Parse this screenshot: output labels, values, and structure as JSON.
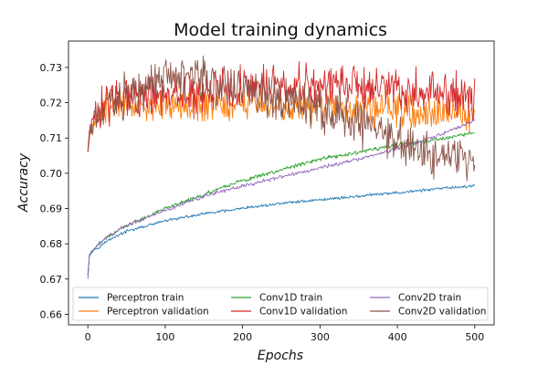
{
  "chart_data": {
    "type": "line",
    "title": "Model training dynamics",
    "xlabel": "Epochs",
    "ylabel": "Accuracy",
    "xlim": [
      -25,
      525
    ],
    "ylim": [
      0.657,
      0.7375
    ],
    "xticks": [
      0,
      100,
      200,
      300,
      400,
      500
    ],
    "yticks": [
      0.66,
      0.67,
      0.68,
      0.69,
      0.7,
      0.71,
      0.72,
      0.73
    ],
    "ytick_labels": [
      "0.66",
      "0.67",
      "0.68",
      "0.69",
      "0.70",
      "0.71",
      "0.72",
      "0.73"
    ],
    "grid": false,
    "legend_position": "bottom",
    "series": [
      {
        "name": "Perceptron train",
        "color": "#1f77b4",
        "noise": 0.0003,
        "x": [
          0,
          2,
          5,
          10,
          20,
          30,
          50,
          75,
          100,
          150,
          200,
          250,
          300,
          350,
          400,
          450,
          500
        ],
        "y": [
          0.671,
          0.677,
          0.678,
          0.6785,
          0.68,
          0.6815,
          0.6835,
          0.685,
          0.6865,
          0.6885,
          0.69,
          0.6915,
          0.6925,
          0.6935,
          0.6945,
          0.6955,
          0.6965
        ]
      },
      {
        "name": "Perceptron validation",
        "color": "#ff7f0e",
        "noise": 0.0035,
        "x": [
          0,
          3,
          10,
          20,
          40,
          60,
          100,
          150,
          200,
          250,
          300,
          350,
          400,
          450,
          500
        ],
        "y": [
          0.706,
          0.712,
          0.716,
          0.719,
          0.719,
          0.719,
          0.7195,
          0.7195,
          0.7195,
          0.7195,
          0.719,
          0.718,
          0.718,
          0.717,
          0.717
        ]
      },
      {
        "name": "Conv1D train",
        "color": "#2ca02c",
        "noise": 0.0004,
        "x": [
          0,
          2,
          5,
          10,
          20,
          40,
          60,
          100,
          150,
          200,
          250,
          300,
          350,
          400,
          450,
          500
        ],
        "y": [
          0.671,
          0.6765,
          0.6775,
          0.679,
          0.681,
          0.684,
          0.686,
          0.69,
          0.694,
          0.698,
          0.701,
          0.704,
          0.706,
          0.708,
          0.7095,
          0.7115
        ]
      },
      {
        "name": "Conv1D validation",
        "color": "#d62728",
        "noise": 0.0045,
        "x": [
          0,
          3,
          10,
          20,
          50,
          100,
          150,
          200,
          250,
          300,
          350,
          400,
          450,
          500
        ],
        "y": [
          0.706,
          0.713,
          0.716,
          0.719,
          0.721,
          0.722,
          0.723,
          0.7235,
          0.7245,
          0.725,
          0.7245,
          0.724,
          0.723,
          0.7215
        ]
      },
      {
        "name": "Conv2D train",
        "color": "#9467bd",
        "noise": 0.0004,
        "x": [
          0,
          2,
          5,
          10,
          20,
          40,
          60,
          100,
          150,
          200,
          250,
          300,
          350,
          400,
          450,
          500
        ],
        "y": [
          0.67,
          0.6765,
          0.6775,
          0.679,
          0.681,
          0.684,
          0.686,
          0.6895,
          0.6935,
          0.6965,
          0.699,
          0.7015,
          0.704,
          0.707,
          0.7105,
          0.715
        ]
      },
      {
        "name": "Conv2D validation",
        "color": "#8c564b",
        "noise": 0.0045,
        "x": [
          0,
          3,
          10,
          20,
          50,
          100,
          130,
          150,
          200,
          250,
          300,
          330,
          350,
          400,
          430,
          450,
          480,
          500
        ],
        "y": [
          0.706,
          0.712,
          0.716,
          0.7195,
          0.722,
          0.727,
          0.7275,
          0.7265,
          0.724,
          0.721,
          0.718,
          0.7165,
          0.714,
          0.709,
          0.706,
          0.7055,
          0.7035,
          0.7005
        ]
      }
    ]
  }
}
